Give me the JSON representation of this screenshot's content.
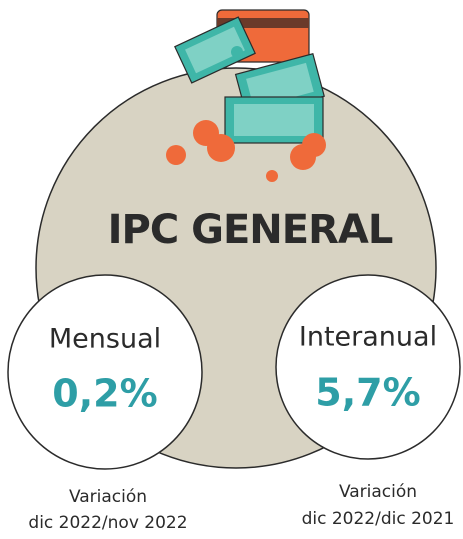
{
  "title": "IPC GENERAL",
  "cards": [
    {
      "label": "Mensual",
      "value": "0,2%",
      "caption": [
        "Variación",
        "dic 2022/nov 2022"
      ]
    },
    {
      "label": "Interanual",
      "value": "5,7%",
      "caption": [
        "Variación",
        "dic 2022/dic 2021"
      ]
    }
  ]
}
